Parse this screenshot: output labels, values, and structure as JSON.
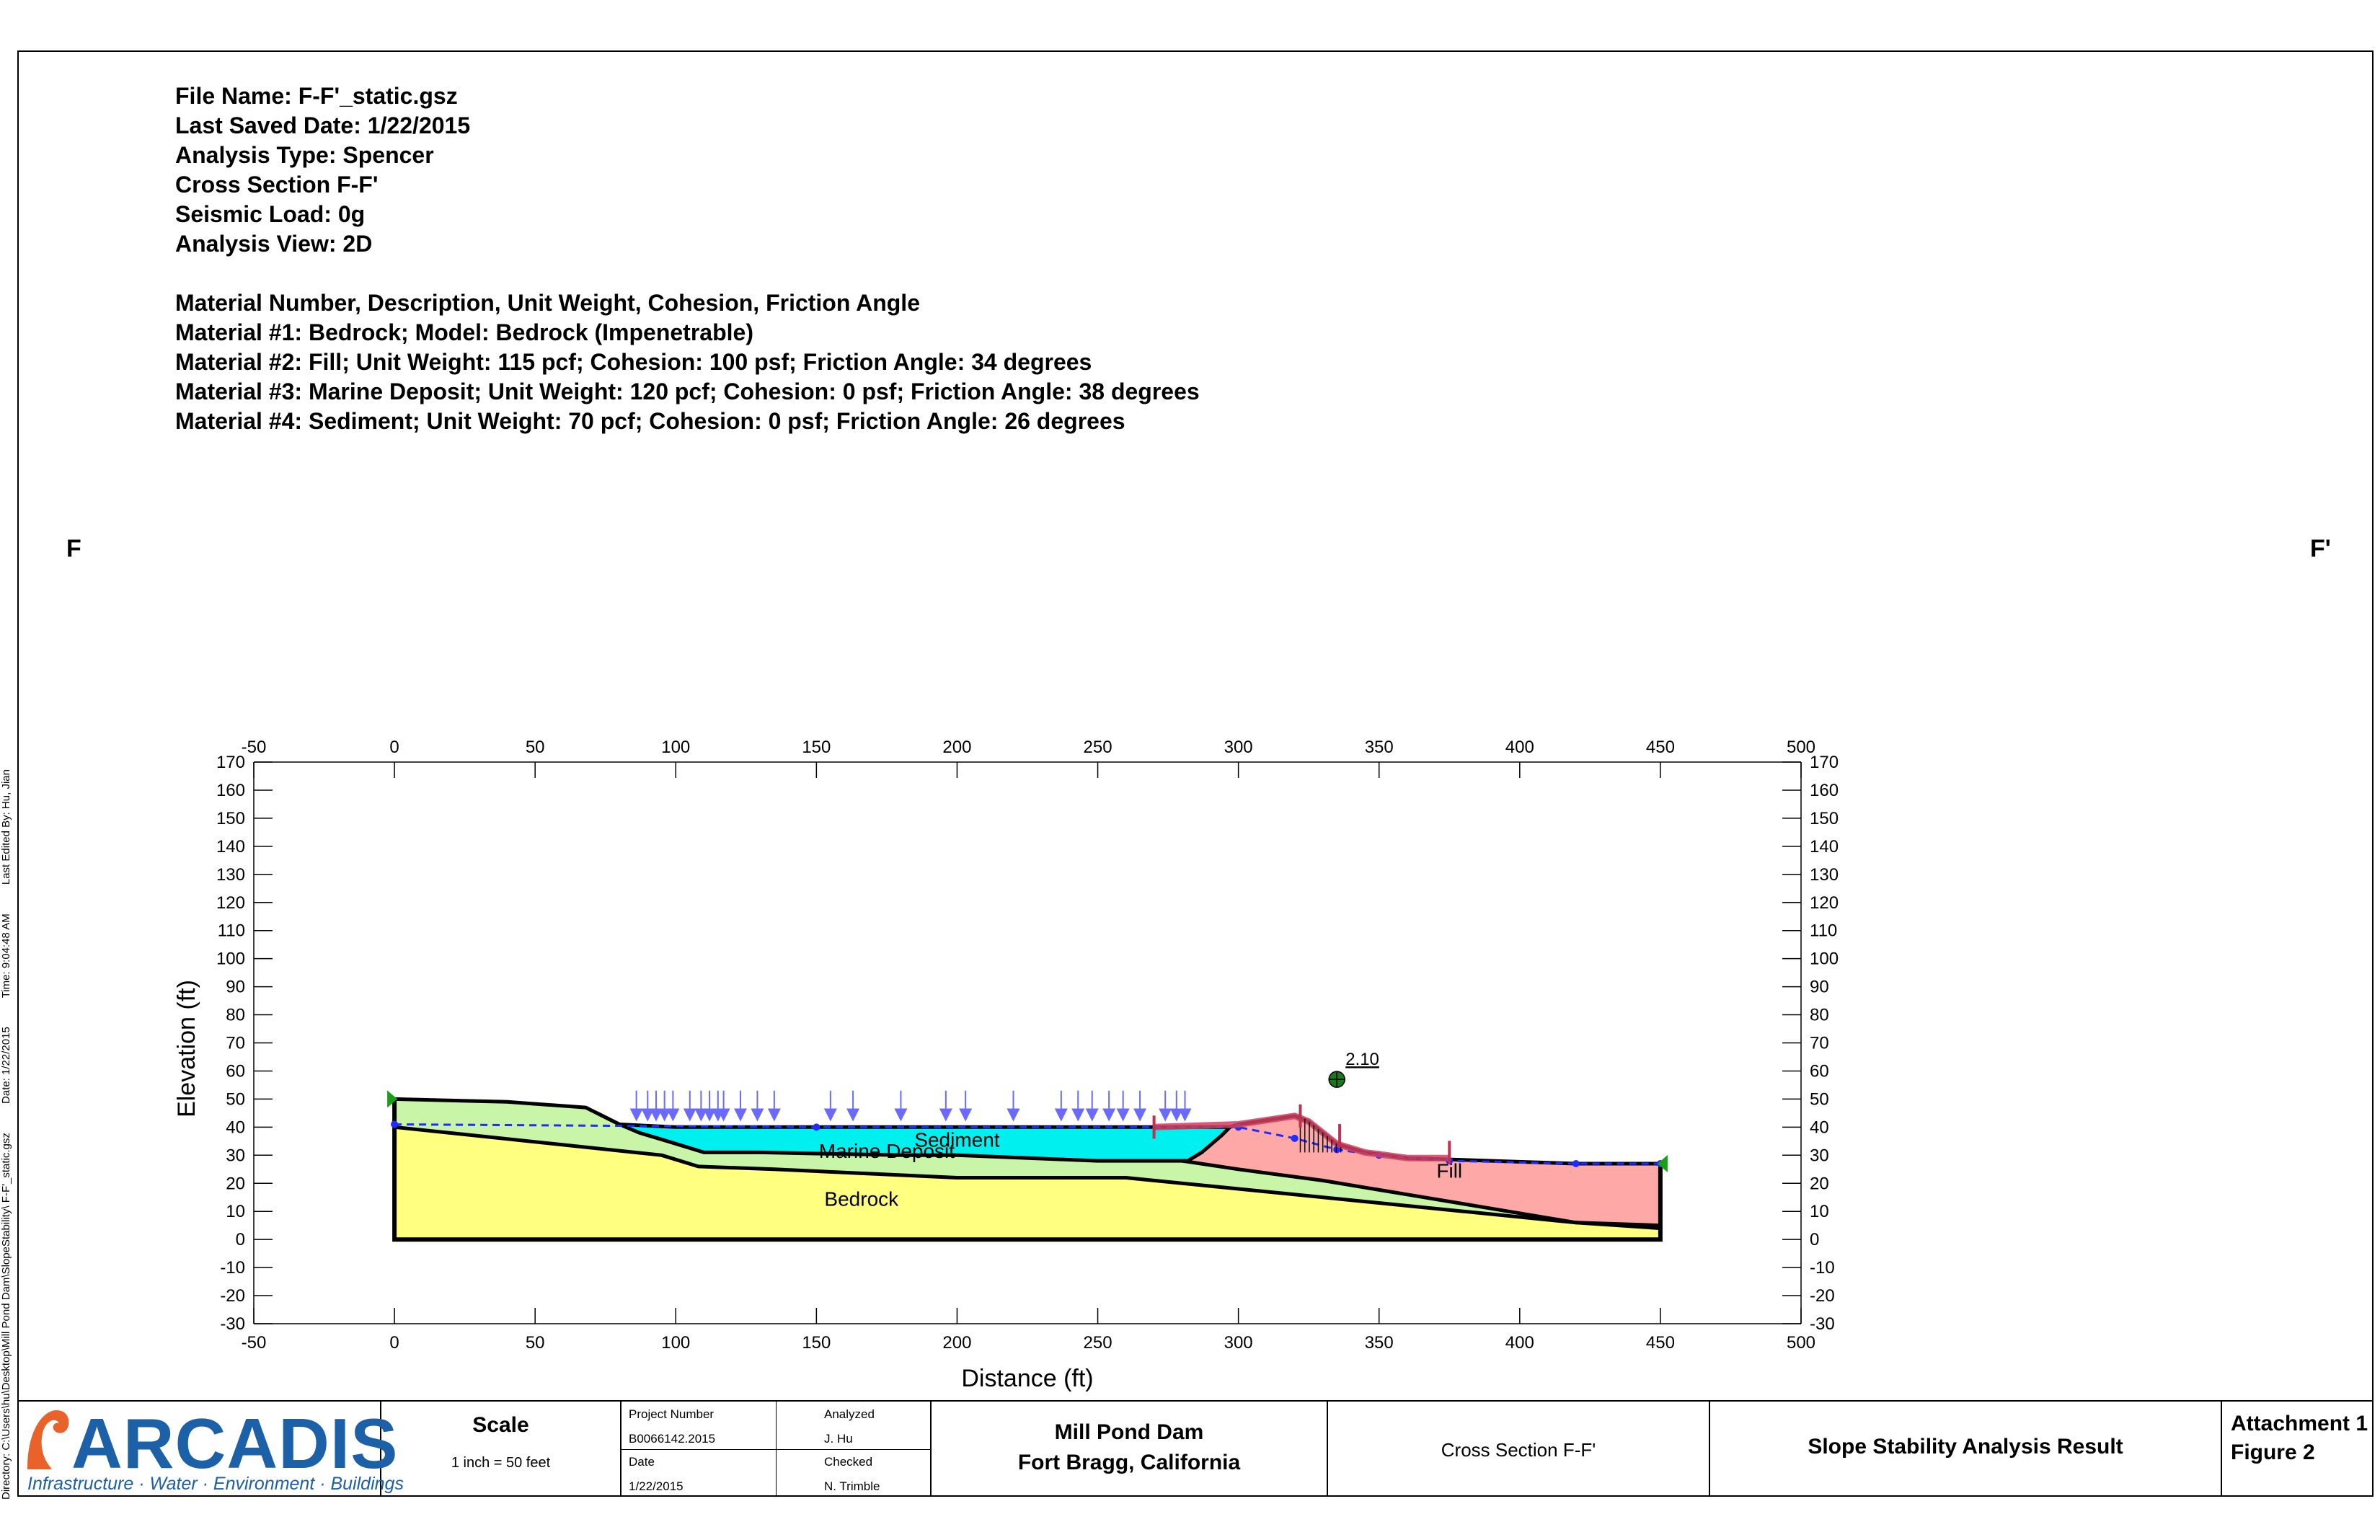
{
  "info": {
    "file_name": "File Name: F-F'_static.gsz",
    "last_saved": "Last Saved Date: 1/22/2015",
    "analysis_type": "Analysis Type: Spencer",
    "cross_section": "Cross Section F-F'",
    "seismic_load": "Seismic Load: 0g",
    "analysis_view": "Analysis View: 2D",
    "materials_header": "Material Number, Description, Unit Weight, Cohesion, Friction Angle",
    "material_1": "Material #1: Bedrock; Model: Bedrock (Impenetrable)",
    "material_2": "Material #2: Fill; Unit Weight: 115 pcf; Cohesion: 100 psf; Friction Angle: 34 degrees",
    "material_3": "Material #3: Marine Deposit; Unit Weight: 120 pcf; Cohesion: 0 psf; Friction Angle: 38 degrees",
    "material_4": "Material #4: Sediment; Unit Weight: 70 pcf; Cohesion: 0 psf; Friction Angle: 26 degrees"
  },
  "section_marks": {
    "left": "F",
    "right": "F'"
  },
  "sidebar": {
    "directory": "Directory: C:\\Users\\hu\\Desktop\\Mill Pond Dam\\SlopeStability\\ F-F'_static.gsz",
    "date": "Date: 1/22/2015",
    "time": "Time: 9:04:48 AM",
    "edited_by": "Last Edited By: Hu, Jian"
  },
  "chart_data": {
    "type": "cross-section",
    "xlabel": "Distance (ft)",
    "ylabel": "Elevation (ft)",
    "xlim": [
      -50,
      500
    ],
    "ylim": [
      -30,
      170
    ],
    "x_ticks": [
      -50,
      0,
      50,
      100,
      150,
      200,
      250,
      300,
      350,
      400,
      450,
      500
    ],
    "y_ticks": [
      170,
      160,
      150,
      140,
      130,
      120,
      110,
      100,
      90,
      80,
      70,
      60,
      50,
      40,
      30,
      20,
      10,
      0,
      -10,
      -20,
      -30
    ],
    "factor_of_safety": "2.10",
    "slip_center": [
      335,
      57
    ],
    "regions": [
      {
        "name": "Bedrock",
        "label": "Bedrock",
        "color": "#ffff80",
        "label_at": [
          166,
          12
        ],
        "points": [
          [
            0,
            0
          ],
          [
            0,
            40
          ],
          [
            95,
            30
          ],
          [
            108,
            26
          ],
          [
            135,
            25
          ],
          [
            200,
            22
          ],
          [
            260,
            22
          ],
          [
            300,
            18
          ],
          [
            340,
            14
          ],
          [
            380,
            10
          ],
          [
            420,
            6
          ],
          [
            450,
            5
          ],
          [
            450,
            0
          ]
        ]
      },
      {
        "name": "Marine Deposit",
        "label": "Marine Deposit",
        "color": "#c8f5a8",
        "label_at": [
          175,
          29
        ],
        "points": [
          [
            0,
            40
          ],
          [
            95,
            30
          ],
          [
            108,
            26
          ],
          [
            135,
            25
          ],
          [
            200,
            22
          ],
          [
            260,
            22
          ],
          [
            300,
            18
          ],
          [
            340,
            14
          ],
          [
            380,
            10
          ],
          [
            420,
            6
          ],
          [
            450,
            5
          ],
          [
            450,
            4
          ],
          [
            420,
            6
          ],
          [
            405,
            9
          ],
          [
            390,
            11
          ],
          [
            375,
            13
          ],
          [
            360,
            16
          ],
          [
            345,
            18
          ],
          [
            330,
            21
          ],
          [
            315,
            23
          ],
          [
            300,
            25
          ],
          [
            285,
            27
          ],
          [
            270,
            28
          ],
          [
            250,
            28
          ],
          [
            200,
            30
          ],
          [
            180,
            30
          ],
          [
            130,
            31
          ],
          [
            110,
            31
          ],
          [
            97,
            35
          ],
          [
            87,
            38
          ],
          [
            80,
            41
          ],
          [
            72,
            45
          ],
          [
            68,
            47
          ],
          [
            40,
            49
          ],
          [
            0,
            50
          ]
        ]
      },
      {
        "name": "Sediment",
        "label": "Sediment",
        "color": "#00f0f0",
        "label_at": [
          200,
          33
        ],
        "points": [
          [
            80,
            41
          ],
          [
            87,
            38
          ],
          [
            97,
            35
          ],
          [
            110,
            31
          ],
          [
            130,
            31
          ],
          [
            180,
            30
          ],
          [
            200,
            30
          ],
          [
            250,
            28
          ],
          [
            270,
            28
          ],
          [
            282,
            28
          ],
          [
            287,
            31
          ],
          [
            294,
            37
          ],
          [
            297,
            40
          ],
          [
            150,
            40
          ],
          [
            100,
            40
          ]
        ]
      },
      {
        "name": "Fill",
        "label": "Fill",
        "color": "#ffa8a8",
        "label_at": [
          375,
          22
        ],
        "points": [
          [
            282,
            28
          ],
          [
            287,
            31
          ],
          [
            294,
            37
          ],
          [
            297,
            40
          ],
          [
            300,
            41
          ],
          [
            320,
            44
          ],
          [
            325,
            42
          ],
          [
            335,
            34
          ],
          [
            345,
            31
          ],
          [
            360,
            29
          ],
          [
            390,
            28
          ],
          [
            420,
            27
          ],
          [
            450,
            27
          ],
          [
            450,
            4
          ],
          [
            420,
            6
          ],
          [
            405,
            9
          ],
          [
            390,
            11
          ],
          [
            375,
            13
          ],
          [
            360,
            16
          ],
          [
            345,
            18
          ],
          [
            330,
            21
          ],
          [
            315,
            23
          ],
          [
            300,
            25
          ],
          [
            285,
            27
          ]
        ]
      }
    ],
    "boundaries": [
      [
        [
          0,
          50
        ],
        [
          40,
          49
        ],
        [
          68,
          47
        ],
        [
          72,
          45
        ],
        [
          80,
          41
        ],
        [
          100,
          40
        ],
        [
          150,
          40
        ],
        [
          297,
          40
        ],
        [
          300,
          41
        ],
        [
          320,
          44
        ],
        [
          325,
          42
        ],
        [
          335,
          34
        ],
        [
          345,
          31
        ],
        [
          360,
          29
        ],
        [
          390,
          28
        ],
        [
          420,
          27
        ],
        [
          450,
          27
        ]
      ],
      [
        [
          0,
          40
        ],
        [
          95,
          30
        ],
        [
          108,
          26
        ],
        [
          135,
          25
        ],
        [
          200,
          22
        ],
        [
          260,
          22
        ],
        [
          300,
          18
        ],
        [
          340,
          14
        ],
        [
          380,
          10
        ],
        [
          420,
          6
        ],
        [
          450,
          5
        ]
      ],
      [
        [
          72,
          45
        ],
        [
          80,
          41
        ],
        [
          87,
          38
        ],
        [
          97,
          35
        ],
        [
          110,
          31
        ],
        [
          130,
          31
        ],
        [
          180,
          30
        ],
        [
          200,
          30
        ],
        [
          250,
          28
        ],
        [
          270,
          28
        ],
        [
          282,
          28
        ],
        [
          287,
          31
        ],
        [
          294,
          37
        ],
        [
          297,
          40
        ]
      ],
      [
        [
          280,
          28
        ],
        [
          300,
          25
        ],
        [
          330,
          21
        ],
        [
          360,
          16
        ],
        [
          390,
          11
        ],
        [
          420,
          6
        ],
        [
          450,
          4
        ]
      ]
    ],
    "piezometric_line": [
      [
        0,
        41
      ],
      [
        150,
        40
      ],
      [
        300,
        40
      ],
      [
        320,
        36
      ],
      [
        335,
        32
      ],
      [
        350,
        30
      ],
      [
        375,
        28
      ],
      [
        420,
        27
      ],
      [
        450,
        27
      ]
    ],
    "load_arrows_x": [
      86,
      90,
      93,
      96,
      99,
      105,
      109,
      112,
      115,
      117,
      123,
      129,
      135,
      155,
      163,
      180,
      196,
      203,
      220,
      237,
      243,
      248,
      254,
      259,
      265,
      274,
      278,
      281
    ],
    "load_arrow_top": 53,
    "load_arrow_bottom": 42
  },
  "title_block": {
    "logo": "ARCADIS",
    "tagline": "Infrastructure · Water · Environment · Buildings",
    "scale_label": "Scale",
    "scale_value": "1 inch = 50 feet",
    "project_number_label": "Project Number",
    "project_number": "B0066142.2015",
    "date_label": "Date",
    "date": "1/22/2015",
    "analyzed_label": "Analyzed",
    "analyzed": "J. Hu",
    "checked_label": "Checked",
    "checked": "N. Trimble",
    "site_line1": "Mill Pond Dam",
    "site_line2": "Fort Bragg, California",
    "section": "Cross Section F-F'",
    "result": "Slope Stability Analysis Result",
    "attachment": "Attachment 1",
    "figure": "Figure 2"
  }
}
